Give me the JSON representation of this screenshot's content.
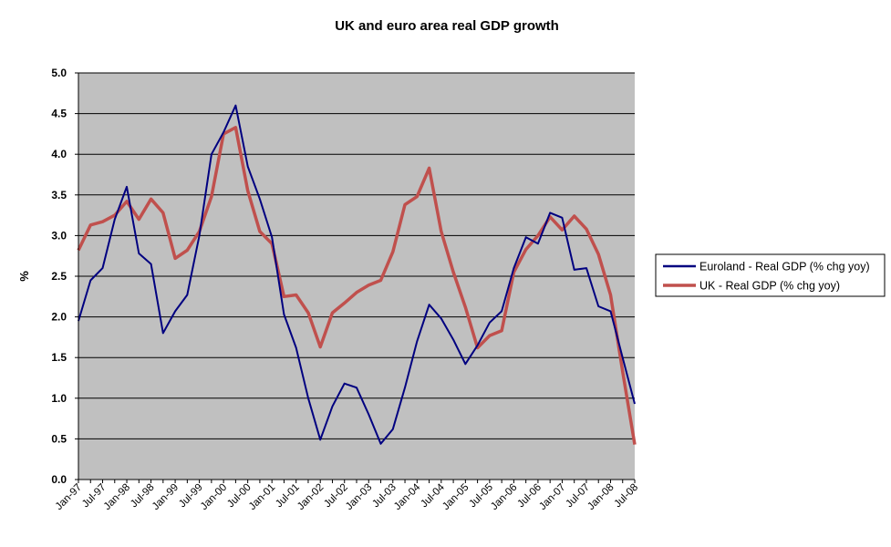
{
  "chart_data": {
    "type": "line",
    "title": "UK and euro area real GDP growth",
    "ylabel": "%",
    "xlabel": "",
    "ylim": [
      0,
      5
    ],
    "yticks": [
      "0.0",
      "0.5",
      "1.0",
      "1.5",
      "2.0",
      "2.5",
      "3.0",
      "3.5",
      "4.0",
      "4.5",
      "5.0"
    ],
    "grid": "horizontal",
    "legend_position": "right",
    "plot_background": "#C0C0C0",
    "x_tick_labels": [
      "Jan-97",
      "Jul-97",
      "Jan-98",
      "Jul-98",
      "Jan-99",
      "Jul-99",
      "Jan-00",
      "Jul-00",
      "Jan-01",
      "Jul-01",
      "Jan-02",
      "Jul-02",
      "Jan-03",
      "Jul-03",
      "Jan-04",
      "Jul-04",
      "Jan-05",
      "Jul-05",
      "Jan-06",
      "Jul-06",
      "Jan-07",
      "Jul-07",
      "Jan-08",
      "Jul-08"
    ],
    "x": [
      "Jan-97",
      "Apr-97",
      "Jul-97",
      "Oct-97",
      "Jan-98",
      "Apr-98",
      "Jul-98",
      "Oct-98",
      "Jan-99",
      "Apr-99",
      "Jul-99",
      "Oct-99",
      "Jan-00",
      "Apr-00",
      "Jul-00",
      "Oct-00",
      "Jan-01",
      "Apr-01",
      "Jul-01",
      "Oct-01",
      "Jan-02",
      "Apr-02",
      "Jul-02",
      "Oct-02",
      "Jan-03",
      "Apr-03",
      "Jul-03",
      "Oct-03",
      "Jan-04",
      "Apr-04",
      "Jul-04",
      "Oct-04",
      "Jan-05",
      "Apr-05",
      "Jul-05",
      "Oct-05",
      "Jan-06",
      "Apr-06",
      "Jul-06",
      "Oct-06",
      "Jan-07",
      "Apr-07",
      "Jul-07",
      "Oct-07",
      "Jan-08",
      "Apr-08",
      "Jul-08"
    ],
    "series": [
      {
        "name": "Euroland - Real GDP (% chg yoy)",
        "color": "#000080",
        "values": [
          1.95,
          2.45,
          2.6,
          3.2,
          3.6,
          2.78,
          2.65,
          1.8,
          2.07,
          2.27,
          3.0,
          4.0,
          4.27,
          4.6,
          3.85,
          3.45,
          2.98,
          2.03,
          1.62,
          1.0,
          0.49,
          0.9,
          1.18,
          1.13,
          0.8,
          0.44,
          0.62,
          1.13,
          1.7,
          2.15,
          1.98,
          1.72,
          1.42,
          1.65,
          1.93,
          2.07,
          2.6,
          2.98,
          2.9,
          3.28,
          3.22,
          2.58,
          2.6,
          2.13,
          2.07,
          1.5,
          0.93
        ]
      },
      {
        "name": "UK - Real GDP (% chg yoy)",
        "color": "#C0504D",
        "values": [
          2.82,
          3.13,
          3.17,
          3.25,
          3.42,
          3.2,
          3.45,
          3.28,
          2.72,
          2.82,
          3.05,
          3.48,
          4.25,
          4.33,
          3.55,
          3.05,
          2.9,
          2.25,
          2.27,
          2.05,
          1.63,
          2.05,
          2.17,
          2.3,
          2.39,
          2.45,
          2.8,
          3.38,
          3.48,
          3.83,
          3.05,
          2.55,
          2.12,
          1.62,
          1.77,
          1.83,
          2.55,
          2.83,
          3.0,
          3.23,
          3.07,
          3.24,
          3.08,
          2.77,
          2.27,
          1.33,
          0.43
        ]
      }
    ]
  }
}
